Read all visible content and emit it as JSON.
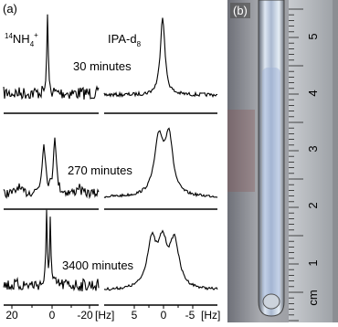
{
  "panel_a": {
    "label": "(a)",
    "nucleus_left": {
      "isotope": "14",
      "ion": "NH",
      "sub": "4",
      "charge": "+"
    },
    "nucleus_right": {
      "name": "IPA-d",
      "sub": "8"
    },
    "times": [
      "30 minutes",
      "270 minutes",
      "3400 minutes"
    ],
    "axis_left": {
      "ticks": [
        "20",
        "0",
        "-20"
      ],
      "unit": "[Hz]"
    },
    "axis_right": {
      "ticks": [
        "5",
        "0",
        "-5"
      ],
      "unit": "[Hz]"
    }
  },
  "panel_b": {
    "label": "(b)",
    "ruler_labels": [
      "5",
      "4",
      "3",
      "2",
      "1",
      "cm"
    ]
  }
}
